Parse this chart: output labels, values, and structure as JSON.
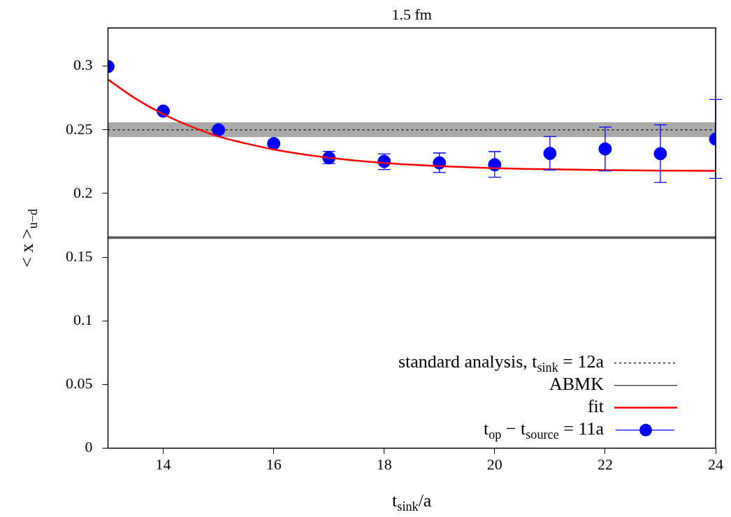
{
  "chart_data": {
    "type": "scatter",
    "title": "1.5 fm",
    "xlabel": "t$_{sink}$/a",
    "ylabel": "< x >$_{u−d}$",
    "xlim": [
      13,
      24
    ],
    "xticks": [
      14,
      16,
      18,
      20,
      22,
      24
    ],
    "ylim": [
      0,
      0.33
    ],
    "yticks": [
      0,
      0.05,
      0.1,
      0.15,
      0.2,
      0.25,
      0.3
    ],
    "grid": false,
    "legend": "bottom right",
    "bands": [
      {
        "axis": "y",
        "from": 0.2443,
        "to": 0.2559,
        "color": "#aaaaaa"
      },
      {
        "axis": "y",
        "from": 0.1642,
        "to": 0.1666,
        "color": "#888888"
      }
    ],
    "series": [
      {
        "name": "standard analysis, t$_{sink}$ = 12a",
        "type": "line",
        "color": "#000000",
        "line_style": "dotted",
        "x": [
          13,
          24
        ],
        "values": [
          0.25,
          0.25
        ]
      },
      {
        "name": "ABMK",
        "type": "line",
        "color": "#333333",
        "line_style": "solid",
        "x": [
          13,
          24
        ],
        "values": [
          0.1654,
          0.1654
        ]
      },
      {
        "name": "fit",
        "type": "line",
        "color": "#ff0000",
        "x": [
          13,
          13.5,
          14,
          14.5,
          15,
          15.5,
          16,
          17,
          18,
          19,
          20,
          21,
          22,
          23,
          24
        ],
        "values": [
          0.2895,
          0.2745,
          0.2623,
          0.2527,
          0.2448,
          0.2393,
          0.2346,
          0.2281,
          0.224,
          0.2215,
          0.2199,
          0.219,
          0.2184,
          0.218,
          0.2178
        ]
      },
      {
        "name": "t$_{op}$ − t$_{source}$ = 11a",
        "color": "#0000ff",
        "marker": "circle",
        "x": [
          13,
          14,
          15,
          16,
          17,
          18,
          19,
          20,
          21,
          22,
          23,
          24
        ],
        "values": [
          0.2997,
          0.2647,
          0.25,
          0.2392,
          0.2281,
          0.2252,
          0.2241,
          0.2226,
          0.2315,
          0.235,
          0.2313,
          0.2427
        ],
        "errors": [
          null,
          null,
          null,
          null,
          [
            0.2235,
            0.2331
          ],
          [
            0.2189,
            0.2311
          ],
          [
            0.2165,
            0.2318
          ],
          [
            0.2128,
            0.2329
          ],
          [
            0.2185,
            0.2448
          ],
          [
            0.2178,
            0.2522
          ],
          [
            0.2087,
            0.254
          ],
          [
            0.2119,
            0.2738
          ]
        ]
      }
    ]
  }
}
